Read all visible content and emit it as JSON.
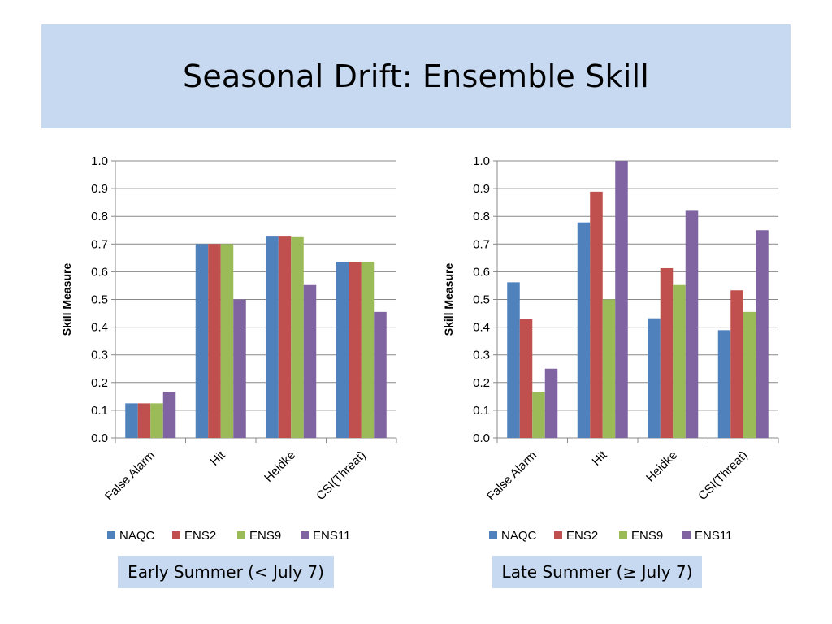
{
  "slide": {
    "title": "Seasonal Drift:  Ensemble Skill"
  },
  "colors": {
    "title_band": "#c6d9f1",
    "caption_band": "#c6d9f1",
    "grid": "#888888"
  },
  "chart_data": [
    {
      "type": "bar",
      "ylabel": "Skill Measure",
      "xlabel": "",
      "ylim": [
        0,
        1.0
      ],
      "ytick_step": 0.1,
      "grid": true,
      "legend_position": "bottom",
      "categories": [
        "False Alarm",
        "Hit",
        "Heidke",
        "CSI(Threat)"
      ],
      "series": [
        {
          "name": "NAQC",
          "color": "#4f81bd",
          "values": [
            0.125,
            0.7,
            0.727,
            0.636
          ]
        },
        {
          "name": "ENS2",
          "color": "#c0504d",
          "values": [
            0.125,
            0.7,
            0.727,
            0.636
          ]
        },
        {
          "name": "ENS9",
          "color": "#9bbb59",
          "values": [
            0.125,
            0.7,
            0.725,
            0.636
          ]
        },
        {
          "name": "ENS11",
          "color": "#8064a2",
          "values": [
            0.167,
            0.5,
            0.552,
            0.455
          ]
        }
      ],
      "caption": "Early Summer (< July 7)"
    },
    {
      "type": "bar",
      "ylabel": "Skill Measure",
      "xlabel": "",
      "ylim": [
        0,
        1.0
      ],
      "ytick_step": 0.1,
      "grid": true,
      "legend_position": "bottom",
      "categories": [
        "False Alarm",
        "Hit",
        "Heidke",
        "CSI(Threat)"
      ],
      "series": [
        {
          "name": "NAQC",
          "color": "#4f81bd",
          "values": [
            0.562,
            0.778,
            0.432,
            0.389
          ]
        },
        {
          "name": "ENS2",
          "color": "#c0504d",
          "values": [
            0.429,
            0.889,
            0.613,
            0.533
          ]
        },
        {
          "name": "ENS9",
          "color": "#9bbb59",
          "values": [
            0.167,
            0.5,
            0.552,
            0.455
          ]
        },
        {
          "name": "ENS11",
          "color": "#8064a2",
          "values": [
            0.25,
            1.0,
            0.82,
            0.75
          ]
        }
      ],
      "caption": "Late Summer (≥ July 7)"
    }
  ]
}
